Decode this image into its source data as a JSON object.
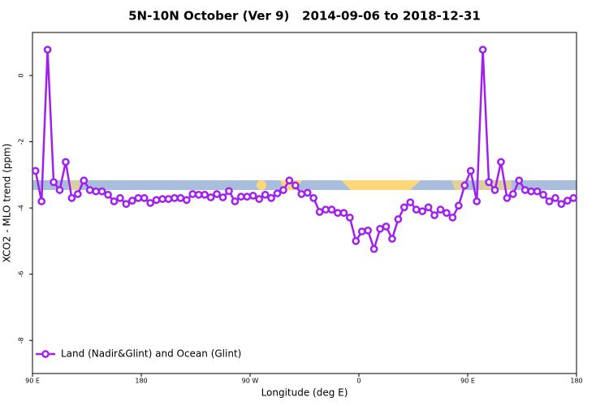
{
  "chart_data": {
    "type": "line",
    "title": "5N-10N October (Ver 9)   2014-09-06 to 2018-12-31",
    "x_label": "Longitude (deg E)",
    "y_label": "XCO2 - MLO trend (ppm)",
    "xlim": [
      90,
      540
    ],
    "ylim": [
      -9,
      1.3
    ],
    "xticks": [
      {
        "value": 90,
        "label": "90 E"
      },
      180,
      {
        "value": 270,
        "label": "90 W"
      },
      {
        "value": 360,
        "label": "0"
      },
      {
        "value": 450,
        "label": "90 E"
      },
      {
        "value": 540,
        "label": "180"
      }
    ],
    "yticks": [
      0,
      -2,
      -4,
      -6,
      -8
    ],
    "legend": "bottom-left",
    "x": [
      92.5,
      97.5,
      102.5,
      107.5,
      112.5,
      117.5,
      122.5,
      127.5,
      132.5,
      137.5,
      142.5,
      147.5,
      152.5,
      157.5,
      162.5,
      167.5,
      172.5,
      177.5,
      182.5,
      187.5,
      192.5,
      197.5,
      202.5,
      207.5,
      212.5,
      217.5,
      222.5,
      227.5,
      232.5,
      237.5,
      242.5,
      247.5,
      252.5,
      257.5,
      262.5,
      267.5,
      272.5,
      277.5,
      282.5,
      287.5,
      292.5,
      297.5,
      302.5,
      307.5,
      312.5,
      317.5,
      322.5,
      327.5,
      332.5,
      337.5,
      342.5,
      347.5,
      352.5,
      357.5,
      362.5,
      367.5,
      372.5,
      377.5,
      382.5,
      387.5,
      392.5,
      397.5,
      402.5,
      407.5,
      412.5,
      417.5,
      422.5,
      427.5,
      432.5,
      437.5,
      442.5,
      447.5,
      452.5,
      457.5,
      462.5,
      467.5,
      472.5,
      477.5,
      482.5,
      487.5,
      492.5,
      497.5,
      502.5,
      507.5,
      512.5,
      517.5,
      522.5,
      527.5,
      532.5,
      537.5
    ],
    "series": [
      {
        "name": "Land (Nadir&Glint) and Ocean (Glint)",
        "color": "#a020f0",
        "values": [
          -2.88,
          -3.8,
          0.78,
          -3.22,
          -3.46,
          -2.61,
          -3.7,
          -3.58,
          -3.17,
          -3.46,
          -3.5,
          -3.5,
          -3.6,
          -3.8,
          -3.7,
          -3.88,
          -3.78,
          -3.7,
          -3.7,
          -3.85,
          -3.76,
          -3.73,
          -3.73,
          -3.7,
          -3.7,
          -3.76,
          -3.58,
          -3.6,
          -3.6,
          -3.68,
          -3.58,
          -3.68,
          -3.49,
          -3.8,
          -3.66,
          -3.66,
          -3.63,
          -3.73,
          -3.6,
          -3.7,
          -3.56,
          -3.46,
          -3.17,
          -3.32,
          -3.58,
          -3.54,
          -3.7,
          -4.12,
          -4.05,
          -4.05,
          -4.15,
          -4.15,
          -4.29,
          -5.0,
          -4.71,
          -4.68,
          -5.24,
          -4.63,
          -4.56,
          -4.93,
          -4.34,
          -3.98,
          -3.83,
          -4.05,
          -4.1,
          -3.98,
          -4.22,
          -4.05,
          -4.15,
          -4.29,
          -3.93,
          -3.32,
          -2.88,
          -3.8,
          0.78,
          -3.22,
          -3.46,
          -2.61,
          -3.7,
          -3.58,
          -3.17,
          -3.46,
          -3.5,
          -3.5,
          -3.6,
          -3.8,
          -3.7,
          -3.88,
          -3.78,
          -3.7
        ]
      }
    ]
  }
}
